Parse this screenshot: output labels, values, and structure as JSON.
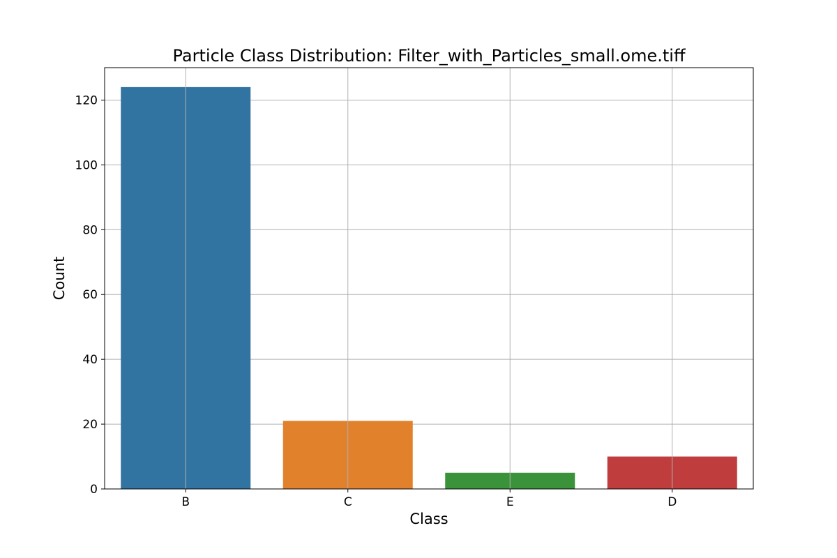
{
  "chart_data": {
    "type": "bar",
    "title": "Particle Class Distribution: Filter_with_Particles_small.ome.tiff",
    "xlabel": "Class",
    "ylabel": "Count",
    "categories": [
      "B",
      "C",
      "E",
      "D"
    ],
    "values": [
      124,
      21,
      5,
      10
    ],
    "colors": [
      "#3274a1",
      "#e1812c",
      "#3a923a",
      "#c03d3e"
    ],
    "ylim": [
      0,
      130
    ],
    "yticks": [
      0,
      20,
      40,
      60,
      80,
      100,
      120
    ],
    "grid": true,
    "legend": "none"
  }
}
